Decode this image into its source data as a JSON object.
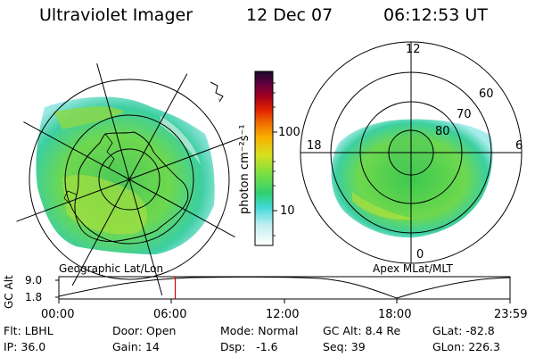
{
  "header": {
    "instrument": "Ultraviolet Imager",
    "date": "12 Dec 07",
    "time": "06:12:53 UT"
  },
  "colorbar": {
    "label": "photon cm⁻²s⁻¹",
    "ticks": [
      "100",
      "10"
    ]
  },
  "left_map": {
    "caption": "Geographic Lat/Lon"
  },
  "right_map": {
    "caption": "Apex MLat/MLT",
    "mlt_labels": [
      "12",
      "6",
      "0",
      "18"
    ],
    "lat_labels": [
      "60",
      "70",
      "80"
    ]
  },
  "orbit_plot": {
    "ylabel": "GC Alt",
    "ymax": "9.0",
    "ymin": "1.8",
    "xticks": [
      "00:00",
      "06:00",
      "12:00",
      "18:00",
      "23:59"
    ],
    "marker_time_fraction": 0.258
  },
  "info": {
    "row1": [
      {
        "key": "Flt:",
        "val": "LBHL"
      },
      {
        "key": "Door:",
        "val": "Open"
      },
      {
        "key": "Mode:",
        "val": "Normal"
      },
      {
        "key": "GC Alt:",
        "val": "8.4 Re"
      },
      {
        "key": "GLat:",
        "val": "-82.8"
      }
    ],
    "row2": [
      {
        "key": "IP:",
        "val": "36.0"
      },
      {
        "key": "Gain:",
        "val": "14"
      },
      {
        "key": "Dsp:",
        "val": "-1.6"
      },
      {
        "key": "Seq:",
        "val": "39"
      },
      {
        "key": "GLon:",
        "val": "226.3"
      }
    ]
  },
  "colors": {
    "bar_top": "#1a0a2a",
    "marker": "#d00000"
  }
}
